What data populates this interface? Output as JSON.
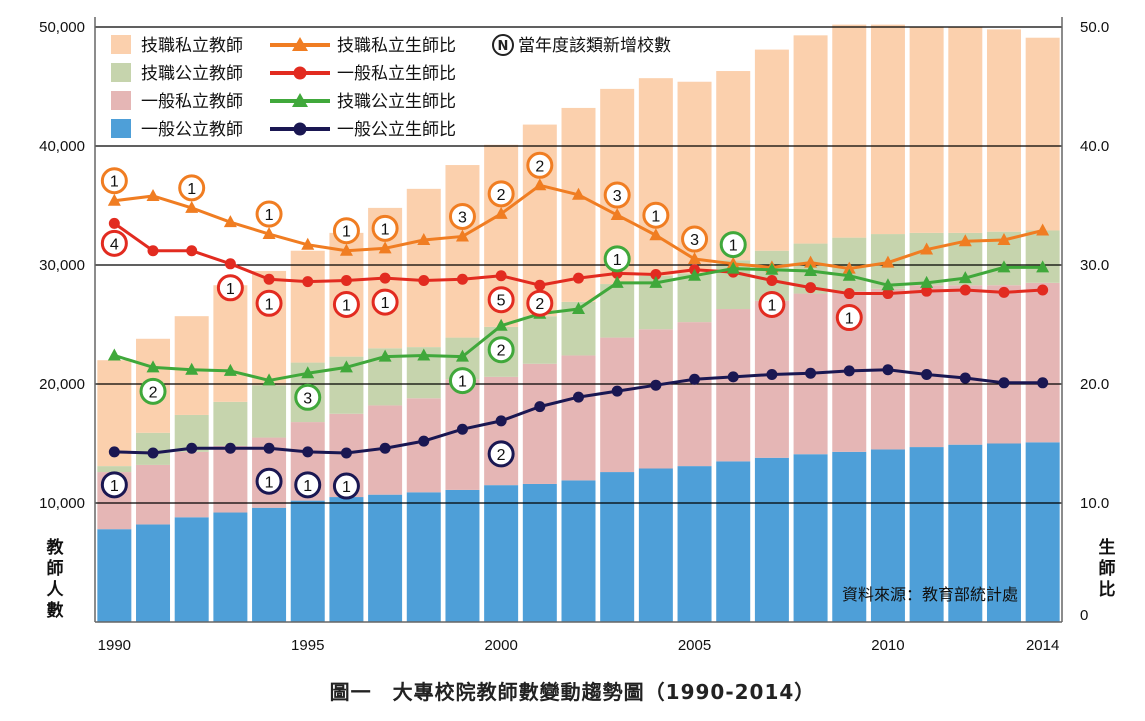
{
  "caption": "圖一　大專校院教師數變動趨勢圖（1990-2014）",
  "chart_data": {
    "type": "bar",
    "title": "圖一　大專校院教師數變動趨勢圖（1990-2014）",
    "source": "資料來源：教育部統計處",
    "x": [
      1990,
      1991,
      1992,
      1993,
      1994,
      1995,
      1996,
      1997,
      1998,
      1999,
      2000,
      2001,
      2002,
      2003,
      2004,
      2005,
      2006,
      2007,
      2008,
      2009,
      2010,
      2011,
      2012,
      2013,
      2014
    ],
    "x_tick_labels": [
      "1990",
      "1995",
      "2000",
      "2005",
      "2010",
      "2014"
    ],
    "y_left": {
      "label": "教師人數",
      "ylim": [
        0,
        50000
      ],
      "ticks": [
        "10,000",
        "20,000",
        "30,000",
        "40,000",
        "50,000"
      ]
    },
    "y_right": {
      "label": "生師比",
      "ylim": [
        0,
        50
      ],
      "ticks": [
        "0",
        "10.0",
        "20.0",
        "30.0",
        "40.0",
        "50.0"
      ]
    },
    "grid": true,
    "legend_position": "top-left",
    "note_label": "當年度該類新增校數",
    "note_symbol": "N",
    "bar_series": [
      {
        "name": "一般公立教師",
        "color": "#4e9fd8",
        "values": [
          7800,
          8200,
          8800,
          9200,
          9600,
          10200,
          10500,
          10700,
          10900,
          11100,
          11500,
          11600,
          11900,
          12600,
          12900,
          13100,
          13500,
          13800,
          14100,
          14300,
          14500,
          14700,
          14900,
          15000,
          15100
        ]
      },
      {
        "name": "一般私立教師",
        "color": "#e5b6b5",
        "values": [
          4800,
          5000,
          5500,
          5600,
          5900,
          6600,
          7000,
          7500,
          7900,
          9300,
          9100,
          10100,
          10500,
          11300,
          11700,
          12100,
          12800,
          13200,
          13500,
          13500,
          13500,
          13600,
          13400,
          13300,
          13400
        ]
      },
      {
        "name": "技職公立教師",
        "color": "#c6d4ad",
        "values": [
          500,
          2700,
          3100,
          3700,
          4400,
          5000,
          4800,
          4800,
          4300,
          3500,
          4200,
          4000,
          4500,
          4500,
          4500,
          4100,
          4100,
          4200,
          4200,
          4500,
          4600,
          4400,
          4400,
          4500,
          4400
        ]
      },
      {
        "name": "技職私立教師",
        "color": "#fbd0ad",
        "values": [
          8900,
          7900,
          8300,
          9800,
          9600,
          9400,
          10400,
          11800,
          13300,
          14500,
          15300,
          16100,
          16300,
          16400,
          16600,
          16100,
          15900,
          16900,
          17500,
          17900,
          17600,
          17300,
          17300,
          17000,
          16200
        ]
      }
    ],
    "line_series": [
      {
        "name": "技職私立生師比",
        "color": "#f07d22",
        "marker": "triangle",
        "values": [
          35.4,
          35.8,
          34.8,
          33.6,
          32.6,
          31.7,
          31.2,
          31.4,
          32.1,
          32.4,
          34.3,
          36.7,
          35.9,
          34.2,
          32.5,
          30.5,
          30.1,
          29.8,
          30.2,
          29.7,
          30.2,
          31.3,
          32.0,
          32.1,
          32.9
        ]
      },
      {
        "name": "一般私立生師比",
        "color": "#e22b20",
        "marker": "circle",
        "values": [
          33.5,
          31.2,
          31.2,
          30.1,
          28.8,
          28.6,
          28.7,
          28.9,
          28.7,
          28.8,
          29.1,
          28.3,
          28.9,
          29.3,
          29.2,
          29.6,
          29.4,
          28.7,
          28.1,
          27.6,
          27.6,
          27.8,
          27.9,
          27.7,
          27.9
        ]
      },
      {
        "name": "技職公立生師比",
        "color": "#40a83b",
        "marker": "triangle",
        "values": [
          22.4,
          21.4,
          21.2,
          21.1,
          20.3,
          20.9,
          21.4,
          22.3,
          22.4,
          22.3,
          24.9,
          25.9,
          26.3,
          28.5,
          28.5,
          29.1,
          29.7,
          29.6,
          29.5,
          29.1,
          28.3,
          28.5,
          28.9,
          29.8,
          29.8
        ]
      },
      {
        "name": "一般公立生師比",
        "color": "#1a1752",
        "marker": "circle",
        "values": [
          14.3,
          14.2,
          14.6,
          14.6,
          14.6,
          14.3,
          14.2,
          14.6,
          15.2,
          16.2,
          16.9,
          18.1,
          18.9,
          19.4,
          19.9,
          20.4,
          20.6,
          20.8,
          20.9,
          21.1,
          21.2,
          20.8,
          20.5,
          20.1,
          20.1
        ]
      }
    ],
    "new_school_markers": [
      {
        "series": "技職私立生師比",
        "color": "#f07d22",
        "points": [
          {
            "year": 1990,
            "n": "1"
          },
          {
            "year": 1992,
            "n": "1"
          },
          {
            "year": 1994,
            "n": "1"
          },
          {
            "year": 1996,
            "n": "1"
          },
          {
            "year": 1997,
            "n": "1"
          },
          {
            "year": 1999,
            "n": "3"
          },
          {
            "year": 2000,
            "n": "2"
          },
          {
            "year": 2001,
            "n": "2"
          },
          {
            "year": 2003,
            "n": "3"
          },
          {
            "year": 2004,
            "n": "1"
          },
          {
            "year": 2005,
            "n": "3"
          }
        ]
      },
      {
        "series": "一般私立生師比",
        "color": "#e22b20",
        "points": [
          {
            "year": 1990,
            "n": "4"
          },
          {
            "year": 1993,
            "n": "1"
          },
          {
            "year": 1994,
            "n": "1"
          },
          {
            "year": 1996,
            "n": "1"
          },
          {
            "year": 1997,
            "n": "1"
          },
          {
            "year": 2000,
            "n": "5"
          },
          {
            "year": 2001,
            "n": "2"
          },
          {
            "year": 2007,
            "n": "1"
          },
          {
            "year": 2009,
            "n": "1"
          }
        ]
      },
      {
        "series": "技職公立生師比",
        "color": "#40a83b",
        "points": [
          {
            "year": 1991,
            "n": "2"
          },
          {
            "year": 1995,
            "n": "3"
          },
          {
            "year": 1999,
            "n": "1"
          },
          {
            "year": 2000,
            "n": "2"
          },
          {
            "year": 2003,
            "n": "1"
          },
          {
            "year": 2006,
            "n": "1"
          }
        ]
      },
      {
        "series": "一般公立生師比",
        "color": "#1a1752",
        "points": [
          {
            "year": 1990,
            "n": "1"
          },
          {
            "year": 1994,
            "n": "1"
          },
          {
            "year": 1995,
            "n": "1"
          },
          {
            "year": 1996,
            "n": "1"
          },
          {
            "year": 2000,
            "n": "2"
          }
        ]
      }
    ]
  }
}
